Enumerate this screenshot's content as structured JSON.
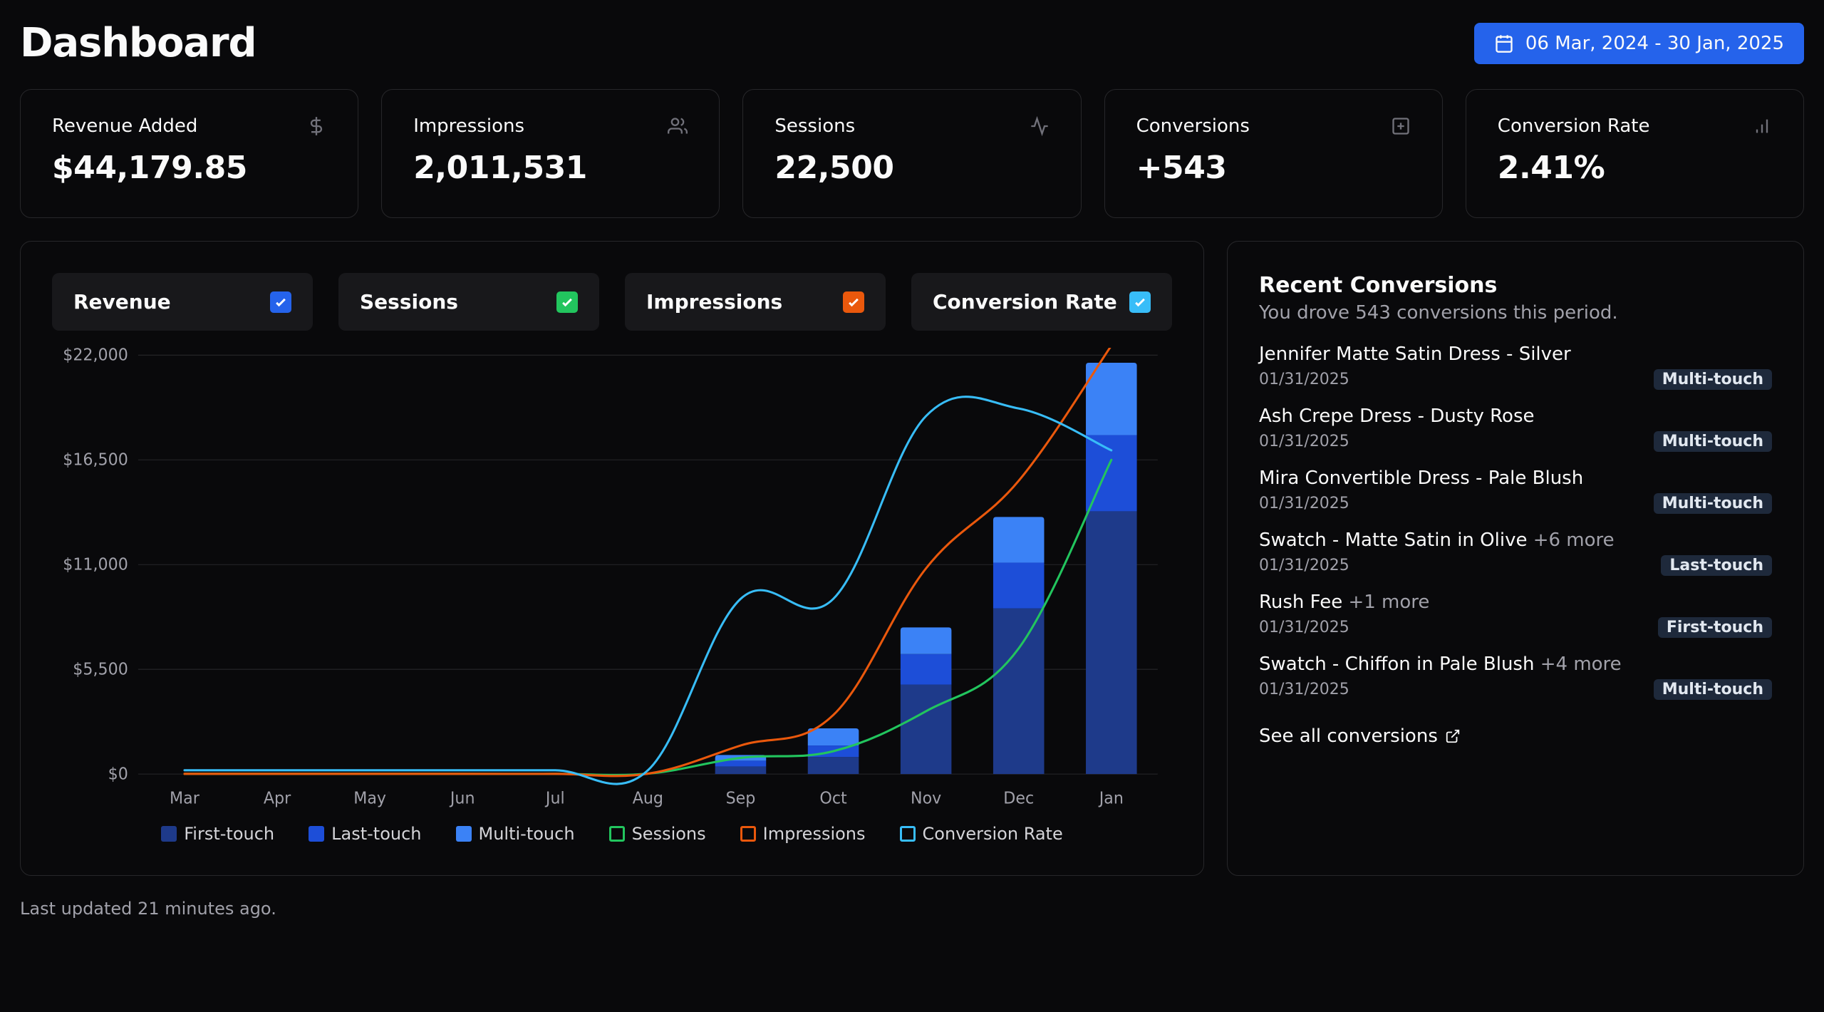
{
  "header": {
    "title": "Dashboard",
    "date_range": "06 Mar, 2024 - 30 Jan, 2025"
  },
  "kpis": [
    {
      "label": "Revenue Added",
      "value": "$44,179.85",
      "icon": "dollar"
    },
    {
      "label": "Impressions",
      "value": "2,011,531",
      "icon": "users"
    },
    {
      "label": "Sessions",
      "value": "22,500",
      "icon": "activity"
    },
    {
      "label": "Conversions",
      "value": "+543",
      "icon": "plus-square"
    },
    {
      "label": "Conversion Rate",
      "value": "2.41%",
      "icon": "bar-chart"
    }
  ],
  "toggles": [
    {
      "label": "Revenue",
      "color": "#2563eb"
    },
    {
      "label": "Sessions",
      "color": "#22c55e"
    },
    {
      "label": "Impressions",
      "color": "#ea580c"
    },
    {
      "label": "Conversion Rate",
      "color": "#38bdf8"
    }
  ],
  "chart": {
    "type": "combo-bar-line",
    "categories": [
      "Mar",
      "Apr",
      "May",
      "Jun",
      "Jul",
      "Aug",
      "Sep",
      "Oct",
      "Nov",
      "Dec",
      "Jan"
    ],
    "y_axis": {
      "ticks": [
        "$0",
        "$5,500",
        "$11,000",
        "$16,500",
        "$22,000"
      ],
      "min": 0,
      "max": 22000,
      "step": 5500
    },
    "stacked_bars": {
      "series": [
        {
          "name": "First-touch",
          "color": "#1e3a8a"
        },
        {
          "name": "Last-touch",
          "color": "#1d4ed8"
        },
        {
          "name": "Multi-touch",
          "color": "#3b82f6"
        }
      ],
      "values": {
        "first_touch": [
          0,
          0,
          0,
          0,
          0,
          0,
          400,
          900,
          4700,
          8700,
          13800
        ],
        "last_touch": [
          0,
          0,
          0,
          0,
          0,
          0,
          300,
          600,
          1600,
          2400,
          4000
        ],
        "multi_touch": [
          0,
          0,
          0,
          0,
          0,
          0,
          300,
          900,
          1400,
          2400,
          3800
        ]
      },
      "bar_width": 0.55
    },
    "lines": [
      {
        "name": "Sessions",
        "color": "#22c55e",
        "values": [
          10,
          10,
          10,
          10,
          10,
          20,
          850,
          1200,
          3300,
          6600,
          16500
        ]
      },
      {
        "name": "Impressions",
        "color": "#ea580c",
        "values": [
          10,
          10,
          10,
          10,
          10,
          20,
          1500,
          3100,
          10800,
          15400,
          22500
        ]
      },
      {
        "name": "Conversion Rate",
        "color": "#38bdf8",
        "values": [
          200,
          200,
          200,
          200,
          200,
          200,
          9200,
          9200,
          18800,
          19200,
          17000
        ]
      }
    ],
    "legend": [
      {
        "label": "First-touch",
        "color": "#1e3a8a",
        "kind": "fill"
      },
      {
        "label": "Last-touch",
        "color": "#1d4ed8",
        "kind": "fill"
      },
      {
        "label": "Multi-touch",
        "color": "#3b82f6",
        "kind": "fill"
      },
      {
        "label": "Sessions",
        "color": "#22c55e",
        "kind": "stroke"
      },
      {
        "label": "Impressions",
        "color": "#ea580c",
        "kind": "stroke"
      },
      {
        "label": "Conversion Rate",
        "color": "#38bdf8",
        "kind": "stroke"
      }
    ],
    "background_color": "#09090b",
    "grid_color": "#27272a",
    "axis_label_color": "#a1a1aa",
    "axis_fontsize": 22,
    "line_width": 3
  },
  "recent": {
    "title": "Recent Conversions",
    "subtitle": "You drove 543 conversions this period.",
    "items": [
      {
        "name": "Jennifer Matte Satin Dress - Silver",
        "extra": "",
        "date": "01/31/2025",
        "badge": "Multi-touch"
      },
      {
        "name": "Ash Crepe Dress - Dusty Rose",
        "extra": "",
        "date": "01/31/2025",
        "badge": "Multi-touch"
      },
      {
        "name": "Mira Convertible Dress - Pale Blush",
        "extra": "",
        "date": "01/31/2025",
        "badge": "Multi-touch"
      },
      {
        "name": "Swatch - Matte Satin in Olive",
        "extra": "+6 more",
        "date": "01/31/2025",
        "badge": "Last-touch"
      },
      {
        "name": "Rush Fee",
        "extra": "+1 more",
        "date": "01/31/2025",
        "badge": "First-touch"
      },
      {
        "name": "Swatch - Chiffon in Pale Blush",
        "extra": "+4 more",
        "date": "01/31/2025",
        "badge": "Multi-touch"
      }
    ],
    "see_all": "See all conversions"
  },
  "footer": "Last updated 21 minutes ago."
}
